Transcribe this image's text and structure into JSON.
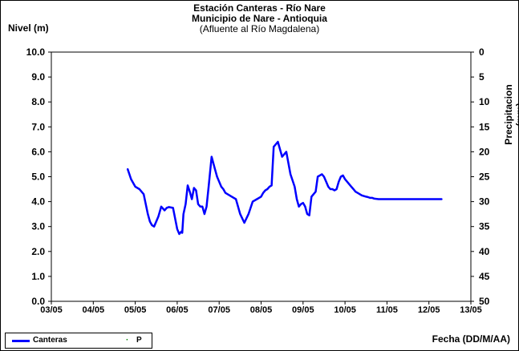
{
  "title": {
    "line1": "Estación Canteras - Río Nare",
    "line2": "Municipio de Nare - Antioquia",
    "line3": "(Afluente al Río Magdalena)"
  },
  "axes": {
    "ylabel": "Nivel (m)",
    "y2label": "Precipitacion (mm)",
    "xlabel": "Fecha (DD/M/AA)"
  },
  "legend": {
    "item1": "Canteras",
    "item2": "P"
  },
  "colors": {
    "series": "#0000ff",
    "p_marker": "#008000"
  },
  "chart_data": {
    "type": "line",
    "title": "Estación Canteras - Río Nare",
    "subtitle": "Municipio de Nare - Antioquia (Afluente al Río Magdalena)",
    "xlabel": "Fecha (DD/M/AA)",
    "ylabel": "Nivel (m)",
    "y2label": "Precipitacion (mm)",
    "ylim": [
      0,
      10
    ],
    "y2lim": [
      50,
      0
    ],
    "y2_reversed": true,
    "x_ticks": [
      "03/05",
      "04/05",
      "05/05",
      "06/05",
      "07/05",
      "08/05",
      "09/05",
      "10/05",
      "11/05",
      "12/05",
      "13/05"
    ],
    "y_ticks": [
      "0.0",
      "1.0",
      "2.0",
      "3.0",
      "4.0",
      "5.0",
      "6.0",
      "7.0",
      "8.0",
      "9.0",
      "10.0"
    ],
    "y2_ticks": [
      "0",
      "5",
      "10",
      "15",
      "20",
      "25",
      "30",
      "35",
      "40",
      "45",
      "50"
    ],
    "legend": "bottom-left",
    "series": [
      {
        "name": "Canteras",
        "x_unit": "months since 03/05",
        "x": [
          1.82,
          1.9,
          2.0,
          2.1,
          2.2,
          2.3,
          2.35,
          2.4,
          2.45,
          2.55,
          2.62,
          2.7,
          2.75,
          2.8,
          2.9,
          3.0,
          3.05,
          3.1,
          3.12,
          3.15,
          3.2,
          3.25,
          3.3,
          3.35,
          3.4,
          3.45,
          3.5,
          3.55,
          3.6,
          3.65,
          3.7,
          3.75,
          3.82,
          3.9,
          3.95,
          4.0,
          4.05,
          4.1,
          4.15,
          4.2,
          4.3,
          4.4,
          4.5,
          4.6,
          4.7,
          4.8,
          4.9,
          5.0,
          5.05,
          5.1,
          5.15,
          5.2,
          5.25,
          5.3,
          5.4,
          5.5,
          5.6,
          5.7,
          5.8,
          5.85,
          5.9,
          5.95,
          6.0,
          6.05,
          6.1,
          6.15,
          6.2,
          6.25,
          6.3,
          6.35,
          6.4,
          6.45,
          6.5,
          6.55,
          6.6,
          6.65,
          6.7,
          6.75,
          6.8,
          6.85,
          6.9,
          6.95,
          7.0,
          7.05,
          7.1,
          7.15,
          7.2,
          7.25,
          7.3,
          7.4,
          7.5,
          7.55,
          7.6,
          7.65,
          7.7,
          7.8,
          7.9,
          7.95,
          8.0,
          8.05,
          8.1,
          8.15,
          8.2,
          8.3,
          8.4,
          8.5,
          8.6,
          8.7,
          8.8,
          9.0,
          9.1,
          9.2,
          9.3
        ],
        "values": [
          5.3,
          4.9,
          4.6,
          4.5,
          4.3,
          3.5,
          3.2,
          3.05,
          3.0,
          3.4,
          3.8,
          3.65,
          3.75,
          3.78,
          3.75,
          2.9,
          2.7,
          2.8,
          2.75,
          3.5,
          3.9,
          4.65,
          4.4,
          4.1,
          4.55,
          4.45,
          3.9,
          3.8,
          3.8,
          3.5,
          3.8,
          4.6,
          5.8,
          5.3,
          5.0,
          4.8,
          4.6,
          4.5,
          4.35,
          4.3,
          4.2,
          4.1,
          3.5,
          3.15,
          3.5,
          4.0,
          4.1,
          4.2,
          4.35,
          4.45,
          4.5,
          4.6,
          4.65,
          6.2,
          6.4,
          5.8,
          6.0,
          5.1,
          4.6,
          4.1,
          3.8,
          3.9,
          3.95,
          3.8,
          3.5,
          3.45,
          4.2,
          4.3,
          4.4,
          5.0,
          5.05,
          5.1,
          5.0,
          4.8,
          4.6,
          4.5,
          4.5,
          4.45,
          4.5,
          4.8,
          5.0,
          5.05,
          4.9,
          4.8,
          4.7,
          4.6,
          4.5,
          4.4,
          4.35,
          4.25,
          4.2,
          4.18,
          4.15,
          4.15,
          4.12,
          4.1,
          4.1,
          4.1,
          4.1,
          4.1,
          4.1,
          4.1,
          4.1,
          4.1,
          4.1,
          4.1,
          4.1,
          4.1,
          4.1,
          4.1,
          4.1,
          4.1,
          4.1
        ]
      },
      {
        "name": "P",
        "values": []
      }
    ]
  }
}
